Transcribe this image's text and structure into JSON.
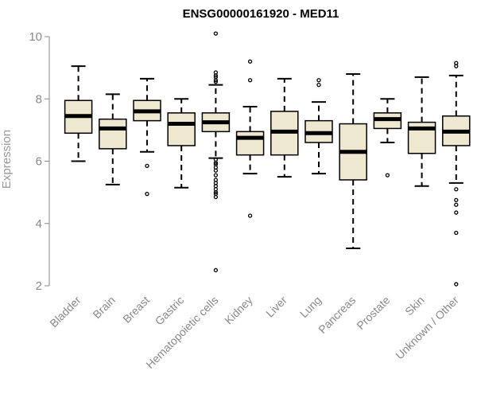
{
  "chart_data": {
    "type": "box",
    "title": "ENSG00000161920 - MED11",
    "xlabel": "",
    "ylabel": "Expression",
    "ylim": [
      2,
      10
    ],
    "yticks": [
      2,
      4,
      6,
      8,
      10
    ],
    "box_fill": "#efe8d0",
    "categories": [
      "Bladder",
      "Brain",
      "Breast",
      "Gastric",
      "Hematopoietic cells",
      "Kidney",
      "Liver",
      "Lung",
      "Pancreas",
      "Prostate",
      "Skin",
      "Unknown / Other"
    ],
    "boxes": [
      {
        "min": 6.0,
        "q1": 6.9,
        "median": 7.45,
        "q3": 7.95,
        "max": 9.05,
        "outliers": []
      },
      {
        "min": 5.25,
        "q1": 6.4,
        "median": 7.05,
        "q3": 7.35,
        "max": 8.15,
        "outliers": []
      },
      {
        "min": 6.3,
        "q1": 7.3,
        "median": 7.6,
        "q3": 7.95,
        "max": 8.65,
        "outliers": [
          5.85,
          4.95
        ]
      },
      {
        "min": 5.15,
        "q1": 6.5,
        "median": 7.2,
        "q3": 7.55,
        "max": 8.0,
        "outliers": []
      },
      {
        "min": 6.1,
        "q1": 6.95,
        "median": 7.25,
        "q3": 7.55,
        "max": 8.45,
        "outliers": [
          10.1,
          8.85,
          8.75,
          8.7,
          8.6,
          8.55,
          6.05,
          5.95,
          5.9,
          5.8,
          5.7,
          5.55,
          5.4,
          5.3,
          5.2,
          5.1,
          5.0,
          4.95,
          4.85,
          2.5
        ]
      },
      {
        "min": 5.6,
        "q1": 6.2,
        "median": 6.75,
        "q3": 6.95,
        "max": 7.75,
        "outliers": [
          9.2,
          8.6,
          4.25
        ]
      },
      {
        "min": 5.5,
        "q1": 6.2,
        "median": 6.95,
        "q3": 7.6,
        "max": 8.65,
        "outliers": []
      },
      {
        "min": 5.6,
        "q1": 6.6,
        "median": 6.9,
        "q3": 7.3,
        "max": 7.9,
        "outliers": [
          8.6,
          8.45
        ]
      },
      {
        "min": 3.2,
        "q1": 5.4,
        "median": 6.3,
        "q3": 7.2,
        "max": 8.8,
        "outliers": []
      },
      {
        "min": 6.6,
        "q1": 7.05,
        "median": 7.35,
        "q3": 7.55,
        "max": 8.0,
        "outliers": [
          5.55
        ]
      },
      {
        "min": 5.2,
        "q1": 6.25,
        "median": 7.05,
        "q3": 7.25,
        "max": 8.7,
        "outliers": []
      },
      {
        "min": 5.3,
        "q1": 6.5,
        "median": 6.95,
        "q3": 7.45,
        "max": 8.75,
        "outliers": [
          9.15,
          9.05,
          5.1,
          4.75,
          4.6,
          4.35,
          3.7,
          2.05
        ]
      }
    ]
  }
}
